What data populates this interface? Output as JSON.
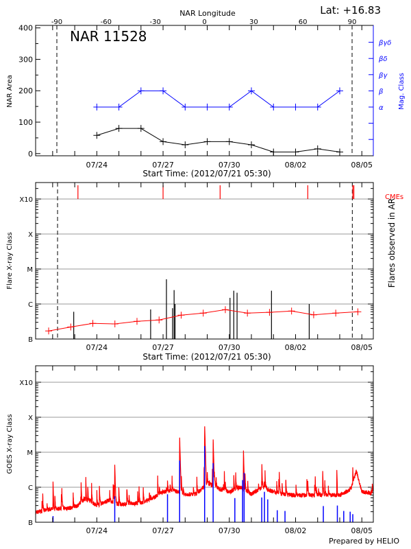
{
  "chart_data": [
    {
      "type": "line",
      "panel": "nar-area-magclass",
      "title": "NAR 11528",
      "corner_label": "Lat: +16.83",
      "top_axis": {
        "label": "NAR Longitude",
        "ticks": [
          -90,
          -60,
          -30,
          0,
          30,
          60,
          90
        ],
        "limb_lines": [
          -90,
          90
        ],
        "limb_line_style": "dashed"
      },
      "xlabel": "Start Time: (2012/07/21 05:30)",
      "xlim": [
        "2012-07-21 05:30",
        "2012-08-05 12:30"
      ],
      "x_tick_labels": [
        "07/24",
        "07/27",
        "07/30",
        "08/02",
        "08/05"
      ],
      "ylabel": "NAR Area",
      "ylim": [
        -7,
        408
      ],
      "y_ticks": [
        0,
        100,
        200,
        300,
        400
      ],
      "y2label": "Mag. Class",
      "y2_categories": [
        "α",
        "β",
        "βγ",
        "βδ",
        "βγδ"
      ],
      "colors": {
        "area": "#000000",
        "mag": "#0000ff"
      },
      "x": [
        "2012-07-24 00:00",
        "2012-07-25 00:00",
        "2012-07-26 00:00",
        "2012-07-27 00:00",
        "2012-07-28 00:00",
        "2012-07-29 00:00",
        "2012-07-30 00:00",
        "2012-07-31 00:00",
        "2012-08-01 00:00",
        "2012-08-02 00:00",
        "2012-08-03 00:00",
        "2012-08-04 00:00"
      ],
      "series": [
        {
          "axis": "left",
          "values": [
            58,
            80,
            80,
            38,
            28,
            38,
            38,
            28,
            5,
            5,
            15,
            5
          ]
        },
        {
          "axis": "right",
          "values": [
            "α",
            "α",
            "β",
            "β",
            "α",
            "α",
            "α",
            "β",
            "α",
            "α",
            "α",
            "β"
          ]
        }
      ]
    },
    {
      "type": "bar",
      "panel": "flares",
      "xlabel": "Start Time: (2012/07/21 05:30)",
      "xlim": [
        "2012-07-21 05:30",
        "2012-08-05 12:30"
      ],
      "x_tick_labels": [
        "07/24",
        "07/27",
        "07/30",
        "08/02",
        "08/05"
      ],
      "ylabel": "Flare X-ray Class",
      "y2label": "Flares observed in AR",
      "yscale": "log",
      "y_tick_labels": [
        "B",
        "C",
        "M",
        "X",
        "X10"
      ],
      "grid": true,
      "limb_lines": [
        "2012-07-22 05:20",
        "2012-08-04 13:40"
      ],
      "cme_label": "CMEs",
      "colors": {
        "flares": "#000000",
        "cmes": "#ff0000",
        "background": "#ff0000",
        "grid": "#999999"
      },
      "cmes": [
        "2012-07-23 03:30",
        "2012-07-27 00:00",
        "2012-07-29 14:00",
        "2012-08-02 13:15",
        "2012-08-04 14:10",
        "2012-08-04 15:20"
      ],
      "flares": [
        {
          "time": "2012-07-22 22:55",
          "class": "B6.0"
        },
        {
          "time": "2012-07-26 10:30",
          "class": "B7.0"
        },
        {
          "time": "2012-07-27 03:40",
          "class": "C5.1"
        },
        {
          "time": "2012-07-27 10:20",
          "class": "B7.6"
        },
        {
          "time": "2012-07-27 12:00",
          "class": "C2.5"
        },
        {
          "time": "2012-07-27 13:00",
          "class": "C1.0"
        },
        {
          "time": "2012-07-30 00:45",
          "class": "C1.5"
        },
        {
          "time": "2012-07-30 04:50",
          "class": "C2.4"
        },
        {
          "time": "2012-07-30 08:25",
          "class": "C2.1"
        },
        {
          "time": "2012-07-31 21:50",
          "class": "C2.4"
        },
        {
          "time": "2012-08-02 14:50",
          "class": "C1.0"
        }
      ],
      "background": {
        "x": [
          "2012-07-21 19:40",
          "2012-07-22 19:40",
          "2012-07-23 19:40",
          "2012-07-24 19:40",
          "2012-07-25 19:40",
          "2012-07-26 19:40",
          "2012-07-27 19:40",
          "2012-07-28 19:40",
          "2012-07-29 19:40",
          "2012-07-30 19:40",
          "2012-07-31 19:40",
          "2012-08-01 19:40",
          "2012-08-02 19:40",
          "2012-08-03 19:40",
          "2012-08-04 19:40"
        ],
        "values": [
          "B1.7",
          "B2.2",
          "B2.8",
          "B2.7",
          "B3.2",
          "B3.5",
          "B4.8",
          "B5.5",
          "B6.9",
          "B5.5",
          "B5.8",
          "B6.3",
          "B4.9",
          "B5.5",
          "B6.0"
        ]
      }
    },
    {
      "type": "line",
      "panel": "goes",
      "xlim": [
        "2012-07-21 05:30",
        "2012-08-05 12:30"
      ],
      "x_tick_labels": [
        "07/24",
        "07/27",
        "07/30",
        "08/02",
        "08/05"
      ],
      "ylabel": "GOES X-ray Class",
      "yscale": "log",
      "y_tick_labels": [
        "B",
        "C",
        "M",
        "X",
        "X10"
      ],
      "grid": true,
      "colors": {
        "long": "#ff0000",
        "short": "#0000ff",
        "grid": "#999999"
      },
      "long_channel_baseline": {
        "x": [
          "2012-07-21 05:30",
          "2012-07-22 00:00",
          "2012-07-23 00:00",
          "2012-07-23 12:00",
          "2012-07-24 00:00",
          "2012-07-24 12:00",
          "2012-07-25 00:00",
          "2012-07-26 00:00",
          "2012-07-26 12:00",
          "2012-07-27 00:00",
          "2012-07-27 12:00",
          "2012-07-28 00:00",
          "2012-07-28 12:00",
          "2012-07-29 00:00",
          "2012-07-29 12:00",
          "2012-07-30 00:00",
          "2012-07-30 12:00",
          "2012-07-31 00:00",
          "2012-07-31 12:00",
          "2012-08-01 00:00",
          "2012-08-01 12:00",
          "2012-08-02 00:00",
          "2012-08-03 00:00",
          "2012-08-04 00:00",
          "2012-08-04 12:00",
          "2012-08-04 18:00",
          "2012-08-05 00:00",
          "2012-08-05 12:30"
        ],
        "values": [
          "B1.9",
          "B2.4",
          "B2.6",
          "B4.7",
          "B3.0",
          "B4.1",
          "B3.2",
          "B3.5",
          "B4.7",
          "B7.4",
          "B8.0",
          "B6.3",
          "B6.3",
          "C1.3",
          "B9.3",
          "B7.4",
          "C1.0",
          "B6.3",
          "C1.0",
          "B7.4",
          "B6.3",
          "B5.9",
          "B5.9",
          "B5.9",
          "B8.6",
          "C2.9",
          "B7.4",
          "B6.8"
        ]
      },
      "long_channel_peaks": [
        {
          "time": "2012-07-22 00:25",
          "class": "C1.5"
        },
        {
          "time": "2012-07-23 12:00",
          "class": "C2.1"
        },
        {
          "time": "2012-07-24 19:30",
          "class": "C4.4"
        },
        {
          "time": "2012-07-27 18:00",
          "class": "M2.8"
        },
        {
          "time": "2012-07-28 21:10",
          "class": "M6.3"
        },
        {
          "time": "2012-07-29 06:25",
          "class": "M2.4"
        },
        {
          "time": "2012-07-30 15:20",
          "class": "M1.2"
        },
        {
          "time": "2012-07-31 11:15",
          "class": "C5.8"
        },
        {
          "time": "2012-08-03 05:30",
          "class": "C2.9"
        },
        {
          "time": "2012-08-03 20:50",
          "class": "C3.1"
        },
        {
          "time": "2012-08-04 14:10",
          "class": "C3.7"
        }
      ],
      "short_channel_peaks": [
        {
          "time": "2012-07-22 00:25",
          "class": "B1.5"
        },
        {
          "time": "2012-07-24 19:30",
          "class": "B5.5"
        },
        {
          "time": "2012-07-27 04:50",
          "class": "B6.3"
        },
        {
          "time": "2012-07-27 18:00",
          "class": "C5.8"
        },
        {
          "time": "2012-07-28 21:10",
          "class": "M1.5"
        },
        {
          "time": "2012-07-29 06:25",
          "class": "C4.9"
        },
        {
          "time": "2012-07-30 06:00",
          "class": "B4.9"
        },
        {
          "time": "2012-07-30 14:25",
          "class": "C1.6"
        },
        {
          "time": "2012-07-30 16:05",
          "class": "C2.6"
        },
        {
          "time": "2012-07-31 11:15",
          "class": "B5.1"
        },
        {
          "time": "2012-07-31 14:10",
          "class": "B7.4"
        },
        {
          "time": "2012-07-31 17:45",
          "class": "B4.5"
        },
        {
          "time": "2012-08-01 04:05",
          "class": "B2.2"
        },
        {
          "time": "2012-08-01 12:30",
          "class": "B2.1"
        },
        {
          "time": "2012-08-03 06:10",
          "class": "B2.9"
        },
        {
          "time": "2012-08-03 21:25",
          "class": "B3.0"
        },
        {
          "time": "2012-08-04 04:20",
          "class": "B2.1"
        },
        {
          "time": "2012-08-04 11:20",
          "class": "B2.0"
        },
        {
          "time": "2012-08-04 14:10",
          "class": "B1.7"
        }
      ]
    }
  ],
  "footer": {
    "credit": "Prepared by HELIO"
  }
}
